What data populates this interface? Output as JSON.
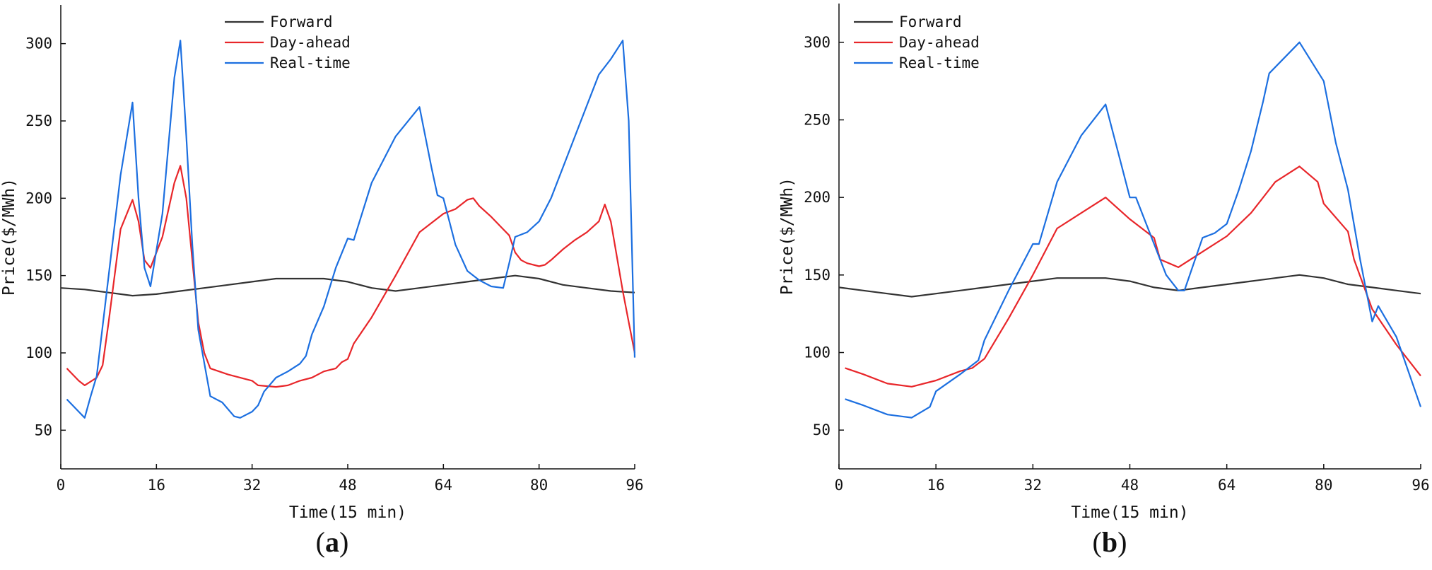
{
  "chart_data": [
    {
      "id": "a",
      "type": "line",
      "panel_label_open": "(",
      "panel_label_letter": "a",
      "panel_label_close": ")",
      "xlabel": "Time(15 min)",
      "ylabel": "Price($/MWh)",
      "xlim": [
        0,
        96
      ],
      "ylim": [
        25,
        325
      ],
      "xticks": [
        0,
        16,
        32,
        48,
        64,
        80,
        96
      ],
      "yticks": [
        50,
        100,
        150,
        200,
        250,
        300
      ],
      "grid": false,
      "legend_position": "top-center",
      "series": [
        {
          "name": "Forward",
          "color": "#333333",
          "points": [
            [
              0,
              142
            ],
            [
              4,
              141
            ],
            [
              8,
              139
            ],
            [
              12,
              137
            ],
            [
              16,
              138
            ],
            [
              20,
              140
            ],
            [
              24,
              142
            ],
            [
              28,
              144
            ],
            [
              32,
              146
            ],
            [
              36,
              148
            ],
            [
              40,
              148
            ],
            [
              44,
              148
            ],
            [
              48,
              146
            ],
            [
              52,
              142
            ],
            [
              56,
              140
            ],
            [
              60,
              142
            ],
            [
              64,
              144
            ],
            [
              68,
              146
            ],
            [
              72,
              148
            ],
            [
              76,
              150
            ],
            [
              80,
              148
            ],
            [
              84,
              144
            ],
            [
              88,
              142
            ],
            [
              92,
              140
            ],
            [
              96,
              139
            ]
          ]
        },
        {
          "name": "Day-ahead",
          "color": "#e8262a",
          "points": [
            [
              1,
              90
            ],
            [
              3,
              82
            ],
            [
              4,
              79
            ],
            [
              6,
              84
            ],
            [
              7,
              92
            ],
            [
              8,
              120
            ],
            [
              10,
              180
            ],
            [
              12,
              199
            ],
            [
              13,
              185
            ],
            [
              14,
              160
            ],
            [
              15,
              155
            ],
            [
              17,
              175
            ],
            [
              19,
              210
            ],
            [
              20,
              221
            ],
            [
              21,
              200
            ],
            [
              22,
              160
            ],
            [
              23,
              120
            ],
            [
              24,
              100
            ],
            [
              25,
              90
            ],
            [
              28,
              86
            ],
            [
              32,
              82
            ],
            [
              33,
              79
            ],
            [
              36,
              78
            ],
            [
              38,
              79
            ],
            [
              40,
              82
            ],
            [
              42,
              84
            ],
            [
              44,
              88
            ],
            [
              46,
              90
            ],
            [
              47,
              94
            ],
            [
              48,
              96
            ],
            [
              49,
              106
            ],
            [
              52,
              123
            ],
            [
              56,
              150
            ],
            [
              60,
              178
            ],
            [
              64,
              190
            ],
            [
              66,
              193
            ],
            [
              68,
              199
            ],
            [
              69,
              200
            ],
            [
              70,
              195
            ],
            [
              72,
              188
            ],
            [
              74,
              180
            ],
            [
              75,
              176
            ],
            [
              76,
              165
            ],
            [
              77,
              160
            ],
            [
              78,
              158
            ],
            [
              80,
              156
            ],
            [
              81,
              157
            ],
            [
              82,
              160
            ],
            [
              84,
              167
            ],
            [
              86,
              173
            ],
            [
              88,
              178
            ],
            [
              90,
              185
            ],
            [
              91,
              196
            ],
            [
              92,
              185
            ],
            [
              94,
              140
            ],
            [
              95,
              120
            ],
            [
              96,
              100
            ]
          ]
        },
        {
          "name": "Real-time",
          "color": "#1c6fe0",
          "points": [
            [
              1,
              70
            ],
            [
              3,
              62
            ],
            [
              4,
              58
            ],
            [
              5,
              72
            ],
            [
              6,
              85
            ],
            [
              8,
              150
            ],
            [
              10,
              215
            ],
            [
              12,
              262
            ],
            [
              13,
              200
            ],
            [
              14,
              155
            ],
            [
              15,
              143
            ],
            [
              17,
              190
            ],
            [
              19,
              278
            ],
            [
              20,
              302
            ],
            [
              21,
              240
            ],
            [
              22,
              170
            ],
            [
              23,
              115
            ],
            [
              25,
              72
            ],
            [
              27,
              68
            ],
            [
              29,
              59
            ],
            [
              30,
              58
            ],
            [
              32,
              62
            ],
            [
              33,
              66
            ],
            [
              34,
              75
            ],
            [
              36,
              84
            ],
            [
              38,
              88
            ],
            [
              40,
              93
            ],
            [
              41,
              98
            ],
            [
              42,
              112
            ],
            [
              44,
              130
            ],
            [
              46,
              155
            ],
            [
              48,
              174
            ],
            [
              49,
              173
            ],
            [
              52,
              210
            ],
            [
              56,
              240
            ],
            [
              60,
              259
            ],
            [
              62,
              220
            ],
            [
              63,
              202
            ],
            [
              64,
              200
            ],
            [
              66,
              170
            ],
            [
              68,
              153
            ],
            [
              70,
              147
            ],
            [
              72,
              143
            ],
            [
              74,
              142
            ],
            [
              75,
              158
            ],
            [
              76,
              175
            ],
            [
              78,
              178
            ],
            [
              80,
              185
            ],
            [
              82,
              200
            ],
            [
              84,
              220
            ],
            [
              86,
              240
            ],
            [
              88,
              260
            ],
            [
              90,
              280
            ],
            [
              92,
              290
            ],
            [
              94,
              302
            ],
            [
              95,
              250
            ],
            [
              96,
              97
            ]
          ]
        }
      ]
    },
    {
      "id": "b",
      "type": "line",
      "panel_label_open": "(",
      "panel_label_letter": "b",
      "panel_label_close": ")",
      "xlabel": "Time(15 min)",
      "ylabel": "Price($/MWh)",
      "xlim": [
        0,
        96
      ],
      "ylim": [
        25,
        325
      ],
      "xticks": [
        0,
        16,
        32,
        48,
        64,
        80,
        96
      ],
      "yticks": [
        50,
        100,
        150,
        200,
        250,
        300
      ],
      "grid": false,
      "legend_position": "top-left",
      "series": [
        {
          "name": "Forward",
          "color": "#333333",
          "points": [
            [
              0,
              142
            ],
            [
              4,
              140
            ],
            [
              8,
              138
            ],
            [
              12,
              136
            ],
            [
              16,
              138
            ],
            [
              20,
              140
            ],
            [
              24,
              142
            ],
            [
              28,
              144
            ],
            [
              32,
              146
            ],
            [
              36,
              148
            ],
            [
              40,
              148
            ],
            [
              44,
              148
            ],
            [
              48,
              146
            ],
            [
              52,
              142
            ],
            [
              56,
              140
            ],
            [
              60,
              142
            ],
            [
              64,
              144
            ],
            [
              68,
              146
            ],
            [
              72,
              148
            ],
            [
              76,
              150
            ],
            [
              80,
              148
            ],
            [
              84,
              144
            ],
            [
              88,
              142
            ],
            [
              92,
              140
            ],
            [
              96,
              138
            ]
          ]
        },
        {
          "name": "Day-ahead",
          "color": "#e8262a",
          "points": [
            [
              1,
              90
            ],
            [
              4,
              86
            ],
            [
              8,
              80
            ],
            [
              12,
              78
            ],
            [
              16,
              82
            ],
            [
              20,
              88
            ],
            [
              22,
              90
            ],
            [
              24,
              96
            ],
            [
              28,
              122
            ],
            [
              32,
              150
            ],
            [
              36,
              180
            ],
            [
              40,
              190
            ],
            [
              44,
              200
            ],
            [
              48,
              186
            ],
            [
              52,
              174
            ],
            [
              53,
              160
            ],
            [
              56,
              155
            ],
            [
              60,
              165
            ],
            [
              64,
              175
            ],
            [
              68,
              190
            ],
            [
              72,
              210
            ],
            [
              76,
              220
            ],
            [
              79,
              210
            ],
            [
              80,
              196
            ],
            [
              84,
              178
            ],
            [
              85,
              160
            ],
            [
              88,
              128
            ],
            [
              92,
              105
            ],
            [
              96,
              85
            ]
          ]
        },
        {
          "name": "Real-time",
          "color": "#1c6fe0",
          "points": [
            [
              1,
              70
            ],
            [
              4,
              66
            ],
            [
              8,
              60
            ],
            [
              12,
              58
            ],
            [
              15,
              65
            ],
            [
              16,
              75
            ],
            [
              20,
              86
            ],
            [
              23,
              95
            ],
            [
              24,
              108
            ],
            [
              28,
              140
            ],
            [
              32,
              170
            ],
            [
              33,
              170
            ],
            [
              36,
              210
            ],
            [
              40,
              240
            ],
            [
              44,
              260
            ],
            [
              46,
              230
            ],
            [
              48,
              200
            ],
            [
              49,
              200
            ],
            [
              52,
              170
            ],
            [
              54,
              150
            ],
            [
              56,
              140
            ],
            [
              57,
              140
            ],
            [
              60,
              174
            ],
            [
              62,
              177
            ],
            [
              64,
              183
            ],
            [
              66,
              205
            ],
            [
              68,
              230
            ],
            [
              70,
              262
            ],
            [
              71,
              280
            ],
            [
              76,
              300
            ],
            [
              80,
              275
            ],
            [
              82,
              235
            ],
            [
              84,
              205
            ],
            [
              86,
              160
            ],
            [
              88,
              120
            ],
            [
              89,
              130
            ],
            [
              92,
              110
            ],
            [
              96,
              65
            ]
          ]
        }
      ]
    }
  ]
}
